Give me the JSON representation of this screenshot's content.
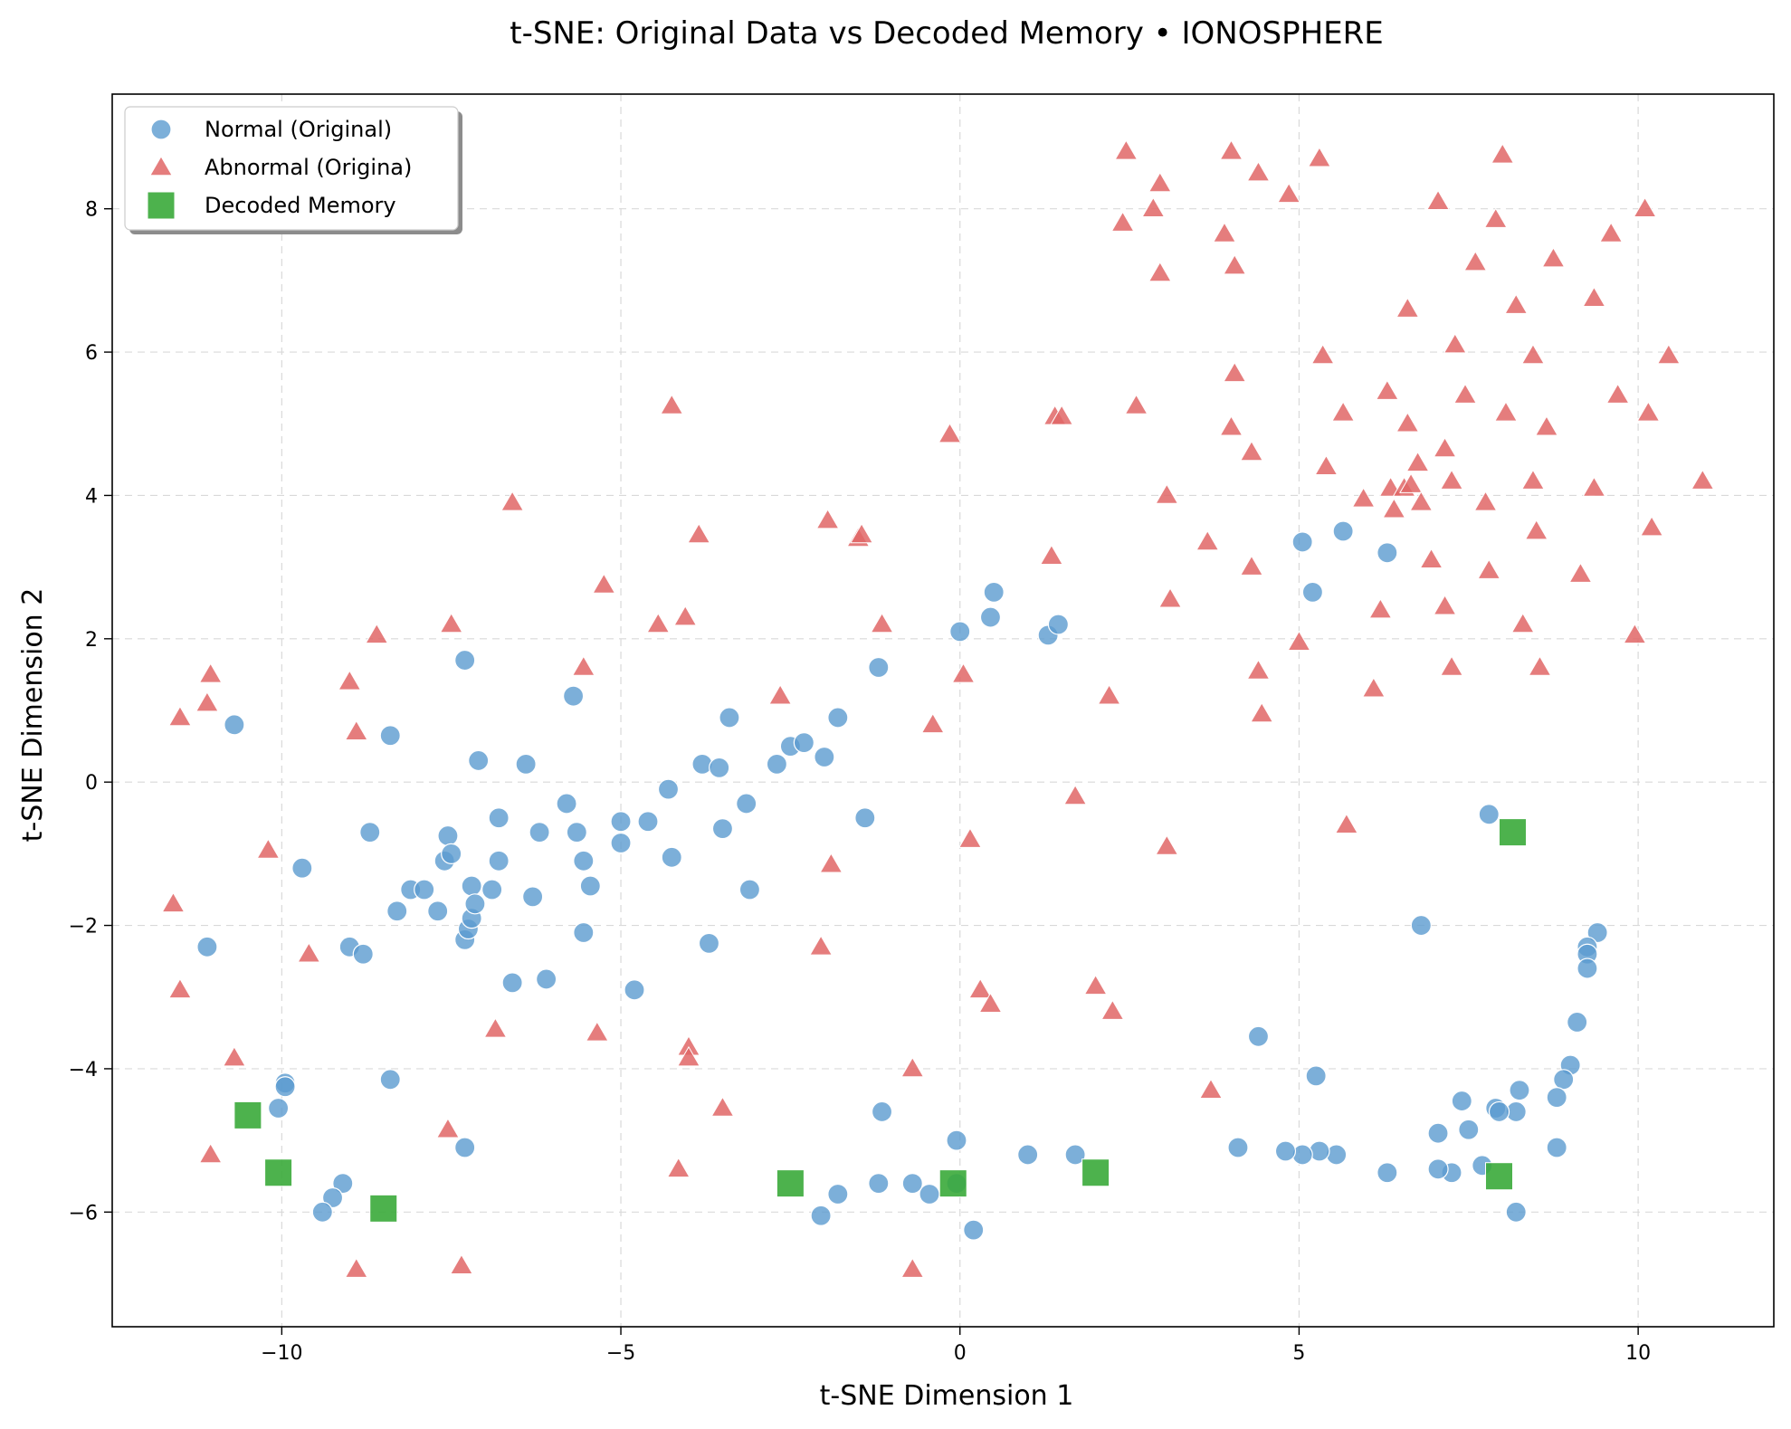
{
  "chart_data": {
    "type": "scatter",
    "title": "t-SNE: Original Data vs Decoded Memory • IONOSPHERE",
    "xlabel": "t-SNE Dimension 1",
    "ylabel": "t-SNE Dimension 2",
    "xlim": [
      -12.5,
      12.0
    ],
    "ylim": [
      -7.6,
      9.6
    ],
    "x_ticks": [
      -10,
      -5,
      0,
      5,
      10
    ],
    "x_tick_labels": [
      "−10",
      "−5",
      "0",
      "5",
      "10"
    ],
    "y_ticks": [
      -6,
      -4,
      -2,
      0,
      2,
      4,
      6,
      8
    ],
    "y_tick_labels": [
      "−6",
      "−4",
      "−2",
      "0",
      "2",
      "4",
      "6",
      "8"
    ],
    "grid": true,
    "legend_position": "upper-left",
    "series": [
      {
        "name": "Normal (Original)",
        "marker": "circle",
        "color": "#5b9bd0",
        "points": [
          [
            -10.7,
            0.8
          ],
          [
            -11.1,
            -2.3
          ],
          [
            -9.7,
            -1.2
          ],
          [
            -9.0,
            -2.3
          ],
          [
            -8.8,
            -2.4
          ],
          [
            -8.7,
            -0.7
          ],
          [
            -8.4,
            0.65
          ],
          [
            -8.3,
            -1.8
          ],
          [
            -8.1,
            -1.5
          ],
          [
            -7.9,
            -1.5
          ],
          [
            -7.7,
            -1.8
          ],
          [
            -7.6,
            -1.1
          ],
          [
            -7.55,
            -0.75
          ],
          [
            -7.5,
            -1.0
          ],
          [
            -7.3,
            -2.2
          ],
          [
            -7.3,
            1.7
          ],
          [
            -7.25,
            -2.05
          ],
          [
            -7.2,
            -1.9
          ],
          [
            -7.2,
            -1.45
          ],
          [
            -7.15,
            -1.7
          ],
          [
            -7.1,
            0.3
          ],
          [
            -6.9,
            -1.5
          ],
          [
            -6.8,
            -0.5
          ],
          [
            -6.8,
            -1.1
          ],
          [
            -6.6,
            -2.8
          ],
          [
            -6.4,
            0.25
          ],
          [
            -6.3,
            -1.6
          ],
          [
            -6.2,
            -0.7
          ],
          [
            -6.1,
            -2.75
          ],
          [
            -5.8,
            -0.3
          ],
          [
            -5.7,
            1.2
          ],
          [
            -5.65,
            -0.7
          ],
          [
            -5.55,
            -1.1
          ],
          [
            -5.55,
            -2.1
          ],
          [
            -5.45,
            -1.45
          ],
          [
            -5.0,
            -0.55
          ],
          [
            -5.0,
            -0.85
          ],
          [
            -4.8,
            -2.9
          ],
          [
            -4.6,
            -0.55
          ],
          [
            -4.3,
            -0.1
          ],
          [
            -4.25,
            -1.05
          ],
          [
            -3.8,
            0.25
          ],
          [
            -3.7,
            -2.25
          ],
          [
            -3.55,
            0.2
          ],
          [
            -3.5,
            -0.65
          ],
          [
            -3.4,
            0.9
          ],
          [
            -3.15,
            -0.3
          ],
          [
            -3.1,
            -1.5
          ],
          [
            -2.7,
            0.25
          ],
          [
            -2.5,
            0.5
          ],
          [
            -2.3,
            0.55
          ],
          [
            -2.0,
            0.35
          ],
          [
            -1.8,
            0.9
          ],
          [
            -1.4,
            -0.5
          ],
          [
            -1.2,
            1.6
          ],
          [
            0.0,
            2.1
          ],
          [
            0.45,
            2.3
          ],
          [
            0.5,
            2.65
          ],
          [
            1.3,
            2.05
          ],
          [
            1.45,
            2.2
          ],
          [
            5.05,
            3.35
          ],
          [
            5.2,
            2.65
          ],
          [
            5.65,
            3.5
          ],
          [
            6.3,
            3.2
          ],
          [
            7.8,
            -0.45
          ],
          [
            6.8,
            -2.0
          ],
          [
            9.4,
            -2.1
          ],
          [
            9.25,
            -2.3
          ],
          [
            9.25,
            -2.4
          ],
          [
            9.25,
            -2.6
          ],
          [
            9.1,
            -3.35
          ],
          [
            9.0,
            -3.95
          ],
          [
            8.9,
            -4.15
          ],
          [
            8.8,
            -4.4
          ],
          [
            8.8,
            -5.1
          ],
          [
            8.25,
            -4.3
          ],
          [
            8.2,
            -4.6
          ],
          [
            8.2,
            -6.0
          ],
          [
            7.9,
            -4.55
          ],
          [
            7.95,
            -4.6
          ],
          [
            7.7,
            -5.35
          ],
          [
            7.5,
            -4.85
          ],
          [
            7.4,
            -4.45
          ],
          [
            7.25,
            -5.45
          ],
          [
            7.05,
            -5.4
          ],
          [
            7.05,
            -4.9
          ],
          [
            6.3,
            -5.45
          ],
          [
            5.55,
            -5.2
          ],
          [
            5.3,
            -5.15
          ],
          [
            5.25,
            -4.1
          ],
          [
            5.05,
            -5.2
          ],
          [
            4.8,
            -5.15
          ],
          [
            4.4,
            -3.55
          ],
          [
            4.1,
            -5.1
          ],
          [
            1.7,
            -5.2
          ],
          [
            1.0,
            -5.2
          ],
          [
            0.2,
            -6.25
          ],
          [
            -0.05,
            -5.0
          ],
          [
            -0.05,
            -5.6
          ],
          [
            -0.45,
            -5.75
          ],
          [
            -0.7,
            -5.6
          ],
          [
            -1.15,
            -4.6
          ],
          [
            -1.2,
            -5.6
          ],
          [
            -1.8,
            -5.75
          ],
          [
            -2.05,
            -6.05
          ],
          [
            -7.3,
            -5.1
          ],
          [
            -8.4,
            -4.15
          ],
          [
            -9.95,
            -4.2
          ],
          [
            -9.95,
            -4.25
          ],
          [
            -10.05,
            -4.55
          ],
          [
            -9.1,
            -5.6
          ],
          [
            -9.25,
            -5.8
          ],
          [
            -9.4,
            -6.0
          ]
        ]
      },
      {
        "name": "Abnormal (Origina)",
        "marker": "triangle",
        "color": "#e06666",
        "points": [
          [
            -11.5,
            0.9
          ],
          [
            -11.1,
            1.1
          ],
          [
            -11.05,
            1.5
          ],
          [
            -11.6,
            -1.7
          ],
          [
            -11.5,
            -2.9
          ],
          [
            -10.7,
            -3.85
          ],
          [
            -11.05,
            -5.2
          ],
          [
            -10.2,
            -0.95
          ],
          [
            -9.6,
            -2.4
          ],
          [
            -9.0,
            1.4
          ],
          [
            -8.9,
            0.7
          ],
          [
            -8.6,
            2.05
          ],
          [
            -8.9,
            -6.8
          ],
          [
            -7.5,
            2.2
          ],
          [
            -7.55,
            -4.85
          ],
          [
            -7.35,
            -6.75
          ],
          [
            -6.85,
            -3.45
          ],
          [
            -6.6,
            3.9
          ],
          [
            -5.55,
            1.6
          ],
          [
            -5.25,
            2.75
          ],
          [
            -5.35,
            -3.5
          ],
          [
            -4.45,
            2.2
          ],
          [
            -4.25,
            5.25
          ],
          [
            -4.05,
            2.3
          ],
          [
            -3.85,
            3.45
          ],
          [
            -4.0,
            -3.7
          ],
          [
            -4.0,
            -3.85
          ],
          [
            -4.15,
            -5.4
          ],
          [
            -3.5,
            -4.55
          ],
          [
            -2.65,
            1.2
          ],
          [
            -1.95,
            3.65
          ],
          [
            -1.5,
            3.4
          ],
          [
            -1.45,
            3.45
          ],
          [
            -1.15,
            2.2
          ],
          [
            -1.9,
            -1.15
          ],
          [
            -2.05,
            -2.3
          ],
          [
            -0.4,
            0.8
          ],
          [
            -0.7,
            -4.0
          ],
          [
            -0.7,
            -6.8
          ],
          [
            -0.15,
            4.85
          ],
          [
            0.05,
            1.5
          ],
          [
            0.15,
            -0.8
          ],
          [
            0.3,
            -2.9
          ],
          [
            0.45,
            -3.1
          ],
          [
            1.4,
            5.1
          ],
          [
            1.5,
            5.1
          ],
          [
            1.35,
            3.15
          ],
          [
            1.7,
            -0.2
          ],
          [
            2.2,
            1.2
          ],
          [
            2.4,
            7.8
          ],
          [
            2.45,
            8.8
          ],
          [
            2.6,
            5.25
          ],
          [
            2.85,
            8.0
          ],
          [
            2.95,
            8.35
          ],
          [
            2.95,
            7.1
          ],
          [
            3.05,
            4.0
          ],
          [
            3.1,
            2.55
          ],
          [
            3.05,
            -0.9
          ],
          [
            2.0,
            -2.85
          ],
          [
            2.25,
            -3.2
          ],
          [
            3.7,
            -4.3
          ],
          [
            3.65,
            3.35
          ],
          [
            3.9,
            7.65
          ],
          [
            4.0,
            8.8
          ],
          [
            4.05,
            7.2
          ],
          [
            4.05,
            5.7
          ],
          [
            4.0,
            4.95
          ],
          [
            4.3,
            4.6
          ],
          [
            4.3,
            3.0
          ],
          [
            4.4,
            1.55
          ],
          [
            4.45,
            0.95
          ],
          [
            4.4,
            8.5
          ],
          [
            4.85,
            8.2
          ],
          [
            5.0,
            1.95
          ],
          [
            5.3,
            8.7
          ],
          [
            5.35,
            5.95
          ],
          [
            5.4,
            4.4
          ],
          [
            5.65,
            5.15
          ],
          [
            5.7,
            -0.6
          ],
          [
            5.95,
            3.95
          ],
          [
            6.1,
            1.3
          ],
          [
            6.2,
            2.4
          ],
          [
            6.3,
            5.45
          ],
          [
            6.35,
            4.1
          ],
          [
            6.4,
            3.8
          ],
          [
            6.55,
            4.1
          ],
          [
            6.6,
            5.0
          ],
          [
            6.6,
            6.6
          ],
          [
            6.65,
            4.15
          ],
          [
            6.75,
            4.45
          ],
          [
            6.8,
            3.9
          ],
          [
            6.95,
            3.1
          ],
          [
            7.05,
            8.1
          ],
          [
            7.15,
            4.65
          ],
          [
            7.15,
            2.45
          ],
          [
            7.25,
            4.2
          ],
          [
            7.25,
            1.6
          ],
          [
            7.3,
            6.1
          ],
          [
            7.45,
            5.4
          ],
          [
            7.6,
            7.25
          ],
          [
            7.75,
            3.9
          ],
          [
            7.8,
            2.95
          ],
          [
            7.9,
            7.85
          ],
          [
            8.0,
            8.75
          ],
          [
            8.05,
            5.15
          ],
          [
            8.2,
            6.65
          ],
          [
            8.3,
            2.2
          ],
          [
            8.45,
            5.95
          ],
          [
            8.45,
            4.2
          ],
          [
            8.5,
            3.5
          ],
          [
            8.55,
            1.6
          ],
          [
            8.65,
            4.95
          ],
          [
            8.75,
            7.3
          ],
          [
            9.15,
            2.9
          ],
          [
            9.35,
            6.75
          ],
          [
            9.35,
            4.1
          ],
          [
            9.6,
            7.65
          ],
          [
            9.7,
            5.4
          ],
          [
            9.95,
            2.05
          ],
          [
            10.1,
            8.0
          ],
          [
            10.15,
            5.15
          ],
          [
            10.2,
            3.55
          ],
          [
            10.45,
            5.95
          ],
          [
            10.95,
            4.2
          ]
        ]
      },
      {
        "name": "Decoded Memory",
        "marker": "square",
        "color": "#3aaa3a",
        "points": [
          [
            -10.5,
            -4.65
          ],
          [
            -10.05,
            -5.45
          ],
          [
            -8.5,
            -5.95
          ],
          [
            -2.5,
            -5.6
          ],
          [
            -0.1,
            -5.6
          ],
          [
            2.0,
            -5.45
          ],
          [
            8.15,
            -0.7
          ],
          [
            7.95,
            -5.5
          ]
        ]
      }
    ]
  }
}
